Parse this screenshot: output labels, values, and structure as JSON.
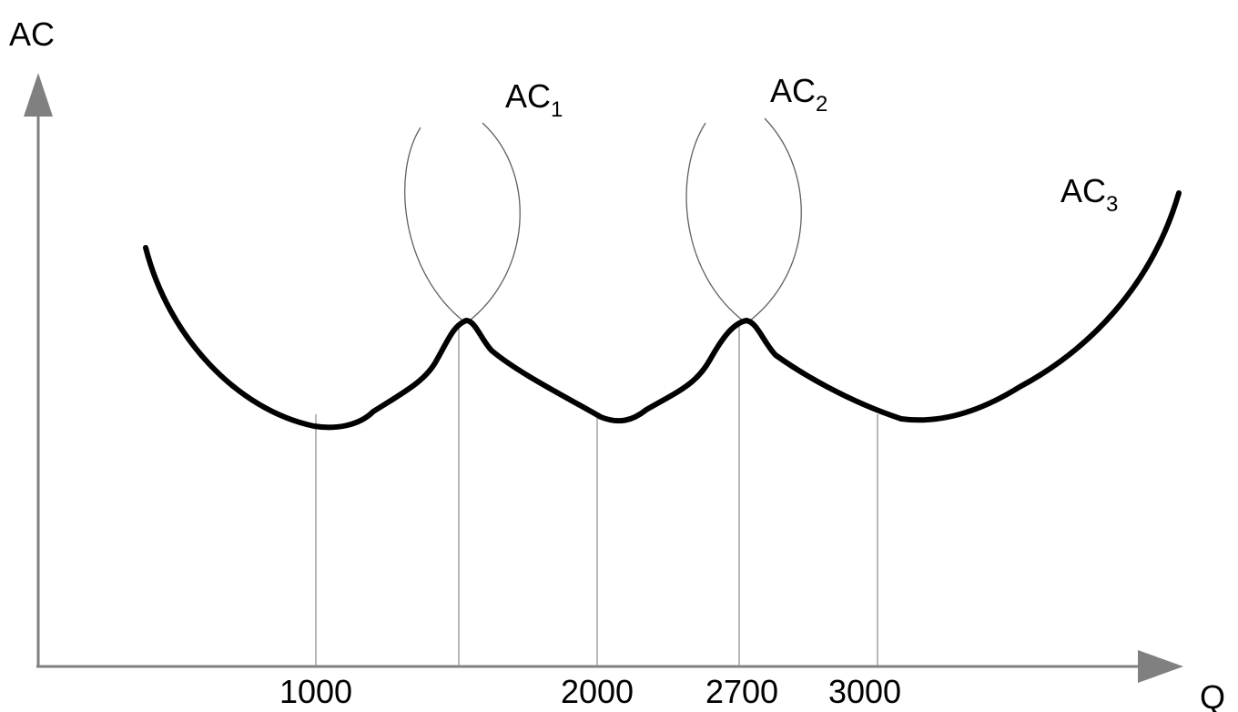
{
  "axes": {
    "y_label": "AC",
    "x_label": "Q"
  },
  "ticks": [
    {
      "label": "1000"
    },
    {
      "label": "2000"
    },
    {
      "label": "2700"
    },
    {
      "label": "3000"
    }
  ],
  "curves": [
    {
      "base": "AC",
      "sub": "1"
    },
    {
      "base": "AC",
      "sub": "2"
    },
    {
      "base": "AC",
      "sub": "3"
    }
  ],
  "colors": {
    "axis": "#808080",
    "envelope": "#000000",
    "guides": "#8a8a8a"
  }
}
